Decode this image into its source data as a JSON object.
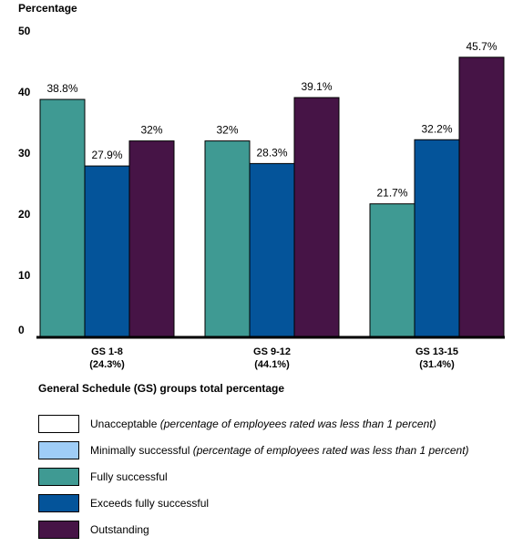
{
  "chart_data": {
    "type": "bar",
    "ylabel": "Percentage",
    "xlabel": "General Schedule (GS) groups total percentage",
    "ylim": [
      0,
      50
    ],
    "yticks": [
      "0",
      "10",
      "20",
      "30",
      "40",
      "50"
    ],
    "categories": [
      {
        "line1": "GS 1-8",
        "line2": "(24.3%)"
      },
      {
        "line1": "GS 9-12",
        "line2": "(44.1%)"
      },
      {
        "line1": "GS 13-15",
        "line2": "(31.4%)"
      }
    ],
    "series": [
      {
        "name": "Fully successful",
        "color": "#3f9a93",
        "values": [
          38.8,
          32,
          21.7
        ],
        "labels": [
          "38.8%",
          "32%",
          "21.7%"
        ]
      },
      {
        "name": "Exceeds fully successful",
        "color": "#04549a",
        "values": [
          27.9,
          28.3,
          32.2
        ],
        "labels": [
          "27.9%",
          "28.3%",
          "32.2%"
        ]
      },
      {
        "name": "Outstanding",
        "color": "#461446",
        "values": [
          32,
          39.1,
          45.7
        ],
        "labels": [
          "32%",
          "39.1%",
          "45.7%"
        ]
      }
    ],
    "legend": [
      {
        "name": "Unacceptable",
        "note": "(percentage of employees rated was less than 1 percent)",
        "color": "#ffffff"
      },
      {
        "name": "Minimally successful",
        "note": "(percentage of employees rated was less than 1 percent)",
        "color": "#9fcdf7"
      },
      {
        "name": "Fully successful",
        "note": "",
        "color": "#3f9a93"
      },
      {
        "name": "Exceeds fully successful",
        "note": "",
        "color": "#04549a"
      },
      {
        "name": "Outstanding",
        "note": "",
        "color": "#461446"
      }
    ]
  }
}
